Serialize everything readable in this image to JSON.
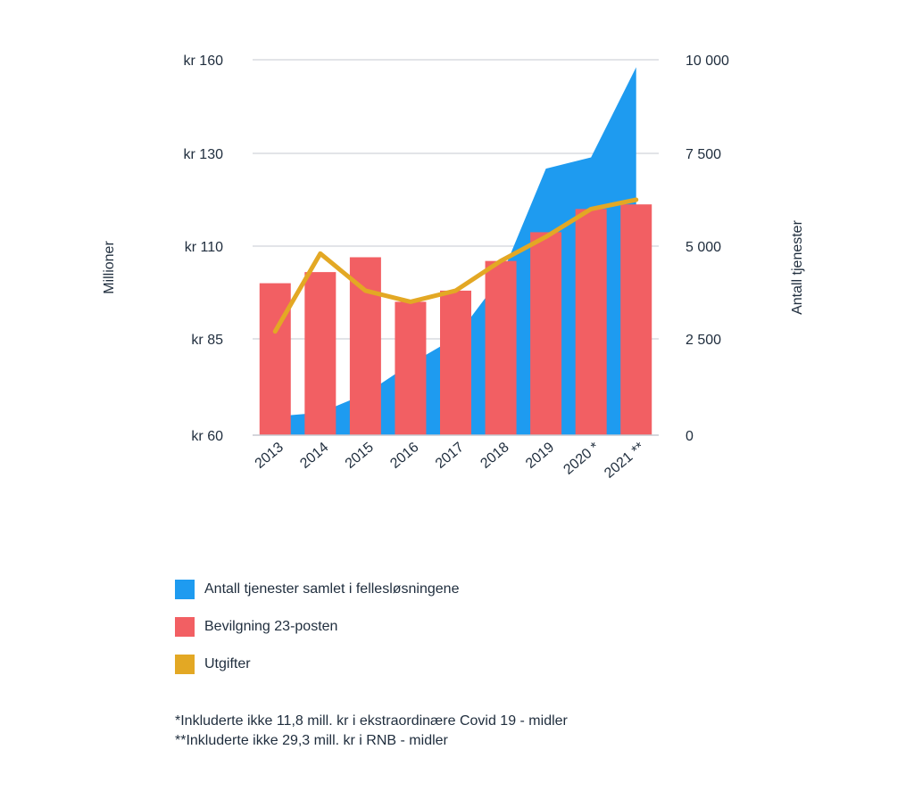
{
  "chart_data": {
    "type": "bar",
    "categories": [
      "2013",
      "2014",
      "2015",
      "2016",
      "2017",
      "2018",
      "2019",
      "2020 *",
      "2021 **"
    ],
    "y_left": {
      "label": "Millioner",
      "ticks": [
        "kr 60",
        "kr 85",
        "kr 110",
        "kr 130",
        "kr 160"
      ]
    },
    "y_right": {
      "label": "Antall tjenester",
      "ticks": [
        "0",
        "2 500",
        "5 000",
        "7 500",
        "10 000"
      ],
      "range": [
        0,
        10000
      ]
    },
    "grid": true,
    "series": [
      {
        "name": "Antall tjenester samlet i fellesløsningene",
        "type": "area",
        "axis": "right",
        "color": "#1e9bf0",
        "values": [
          500,
          600,
          1100,
          1900,
          2600,
          4200,
          7100,
          7400,
          9800
        ]
      },
      {
        "name": "Bevilgning 23-posten",
        "type": "bar",
        "axis": "left",
        "color": "#f25f63",
        "values": [
          100,
          103,
          107,
          95,
          98,
          106,
          113,
          118,
          119
        ]
      },
      {
        "name": "Utgifter",
        "type": "line",
        "axis": "left",
        "color": "#e3a824",
        "values": [
          87,
          108,
          98,
          95,
          98,
          106,
          112,
          118,
          120
        ]
      }
    ]
  },
  "notes": [
    "*Inkluderte ikke 11,8 mill. kr i ekstraordinære Covid 19 - midler",
    "**Inkluderte ikke 29,3 mill. kr i RNB - midler"
  ]
}
